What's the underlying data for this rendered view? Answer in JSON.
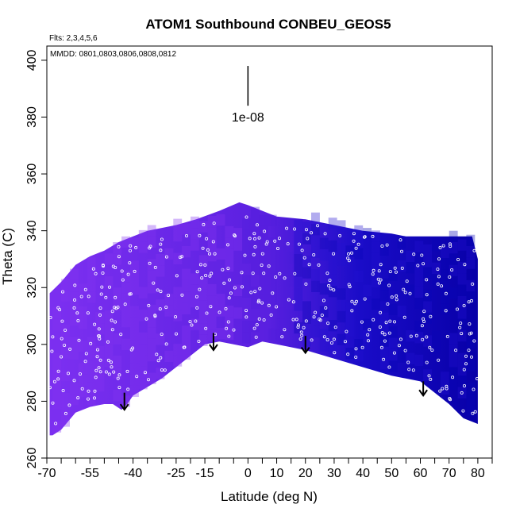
{
  "chart_data": {
    "type": "heatmap",
    "title": "ATOM1 Southbound CONBEU_GEOS5",
    "note_flights": "Flts: 2,3,4,5,6",
    "note_dates": "MMDD: 0801,0803,0806,0808,0812",
    "xlabel": "Latitude (deg N)",
    "ylabel": "Theta (C)",
    "xlim": [
      -70,
      85
    ],
    "ylim": [
      260,
      405
    ],
    "x_ticks": [
      -70,
      -55,
      -40,
      -25,
      -15,
      0,
      10,
      20,
      30,
      40,
      50,
      60,
      70,
      80
    ],
    "x_tick_labels": [
      "-70",
      "-55",
      "-40",
      "-25",
      "-15",
      "0",
      "10",
      "20",
      "30",
      "40",
      "50",
      "60",
      "70",
      "80"
    ],
    "x_minor_ticks": [
      -65,
      -60,
      -50,
      -45,
      -35,
      -30,
      -20,
      -10,
      -5,
      5,
      15,
      25,
      35,
      45,
      55,
      65,
      75,
      85
    ],
    "y_ticks": [
      260,
      280,
      300,
      320,
      340,
      360,
      380,
      400
    ],
    "y_tick_labels": [
      "260",
      "280",
      "300",
      "320",
      "340",
      "360",
      "380",
      "400"
    ],
    "scale_bar": {
      "label": "1e-08",
      "x": 0,
      "y_top": 398,
      "y_bottom": 384
    },
    "colors": {
      "south": "#7b2ff0",
      "mid": "#5a20e0",
      "north": "#1a0cc8",
      "deep": "#0800a8",
      "arrow": "#000000",
      "points": "#ffffff"
    },
    "upper_boundary": [
      [
        -69,
        318
      ],
      [
        -65,
        322
      ],
      [
        -60,
        328
      ],
      [
        -55,
        331
      ],
      [
        -50,
        333
      ],
      [
        -45,
        336
      ],
      [
        -40,
        338
      ],
      [
        -35,
        340
      ],
      [
        -30,
        341
      ],
      [
        -25,
        342
      ],
      [
        -18,
        344
      ],
      [
        -10,
        347
      ],
      [
        -3,
        350
      ],
      [
        0,
        349
      ],
      [
        5,
        347
      ],
      [
        10,
        345
      ],
      [
        20,
        344
      ],
      [
        30,
        342
      ],
      [
        40,
        340
      ],
      [
        50,
        339
      ],
      [
        55,
        338
      ],
      [
        60,
        338
      ],
      [
        70,
        338
      ],
      [
        78,
        338
      ]
    ],
    "right_edge": [
      [
        78,
        338
      ],
      [
        80,
        330
      ],
      [
        80,
        272
      ]
    ],
    "lower_boundary": [
      [
        80,
        272
      ],
      [
        75,
        274
      ],
      [
        70,
        279
      ],
      [
        60,
        287
      ],
      [
        50,
        289
      ],
      [
        40,
        292
      ],
      [
        30,
        295
      ],
      [
        20,
        298
      ],
      [
        15,
        299
      ],
      [
        10,
        300
      ],
      [
        5,
        301
      ],
      [
        0,
        299
      ],
      [
        -5,
        300
      ],
      [
        -10,
        301
      ],
      [
        -15,
        300
      ],
      [
        -20,
        296
      ],
      [
        -25,
        292
      ],
      [
        -30,
        288
      ],
      [
        -35,
        285
      ],
      [
        -40,
        282
      ],
      [
        -42,
        279
      ],
      [
        -44,
        277
      ],
      [
        -47,
        279
      ],
      [
        -50,
        279
      ],
      [
        -55,
        278
      ],
      [
        -60,
        276
      ],
      [
        -65,
        270
      ],
      [
        -68,
        268
      ],
      [
        -69,
        268
      ]
    ],
    "arrows": [
      [
        -43,
        283,
        277
      ],
      [
        -12,
        304,
        298
      ],
      [
        20,
        303,
        297
      ],
      [
        61,
        287,
        282
      ]
    ]
  }
}
